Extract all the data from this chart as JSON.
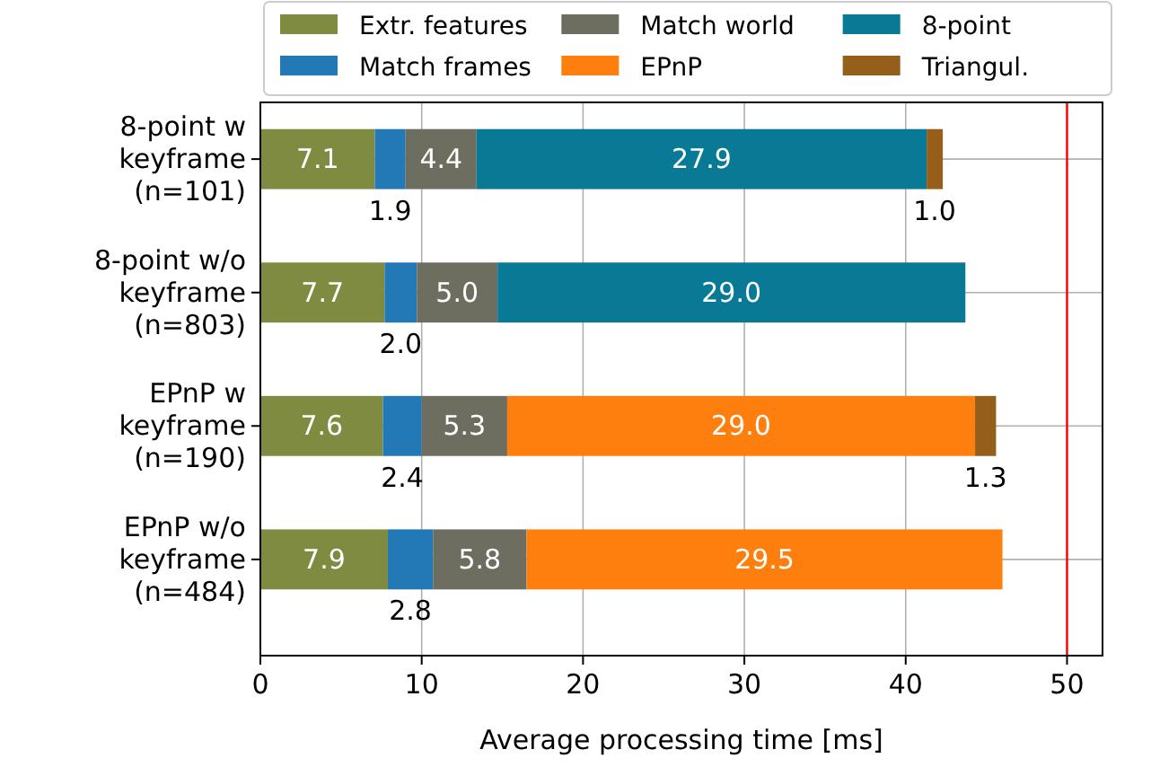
{
  "chart_data": {
    "type": "bar",
    "orientation": "horizontal",
    "stacked": true,
    "categories": [
      "8-point w\nkeyframe\n(n=101)",
      "8-point w/o\nkeyframe\n(n=803)",
      "EPnP w\nkeyframe\n(n=190)",
      "EPnP w/o\nkeyframe\n(n=484)"
    ],
    "series": [
      {
        "name": "Extr. features",
        "color": "#808b42",
        "values": [
          7.1,
          7.7,
          7.6,
          7.9
        ],
        "value_labels": [
          "7.1",
          "7.7",
          "7.6",
          "7.9"
        ]
      },
      {
        "name": "Match frames",
        "color": "#2279b5",
        "values": [
          1.9,
          2.0,
          2.4,
          2.8
        ],
        "value_labels": [
          "1.9",
          "2.0",
          "2.4",
          "2.8"
        ]
      },
      {
        "name": "Match world",
        "color": "#6e6e60",
        "values": [
          4.4,
          5.0,
          5.3,
          5.8
        ],
        "value_labels": [
          "4.4",
          "5.0",
          "5.3",
          "5.8"
        ]
      },
      {
        "name": "EPnP",
        "color": "#ff7f0e",
        "values": [
          null,
          null,
          29.0,
          29.5
        ],
        "value_labels": [
          null,
          null,
          "29.0",
          "29.5"
        ]
      },
      {
        "name": "8-point",
        "color": "#087a96",
        "values": [
          27.9,
          29.0,
          null,
          null
        ],
        "value_labels": [
          "27.9",
          "29.0",
          null,
          null
        ]
      },
      {
        "name": "Triangul.",
        "color": "#955f1b",
        "values": [
          1.0,
          null,
          1.3,
          null
        ],
        "value_labels": [
          "1.0",
          null,
          "1.3",
          null
        ]
      }
    ],
    "xlabel": "Average processing time [ms]",
    "xlim": [
      0,
      52.2
    ],
    "xticks": [
      0,
      10,
      20,
      30,
      40,
      50
    ],
    "ref_lines": [
      {
        "axis": "x",
        "value": 50,
        "color": "#ff0000"
      }
    ],
    "grid": true,
    "legend": "top"
  }
}
